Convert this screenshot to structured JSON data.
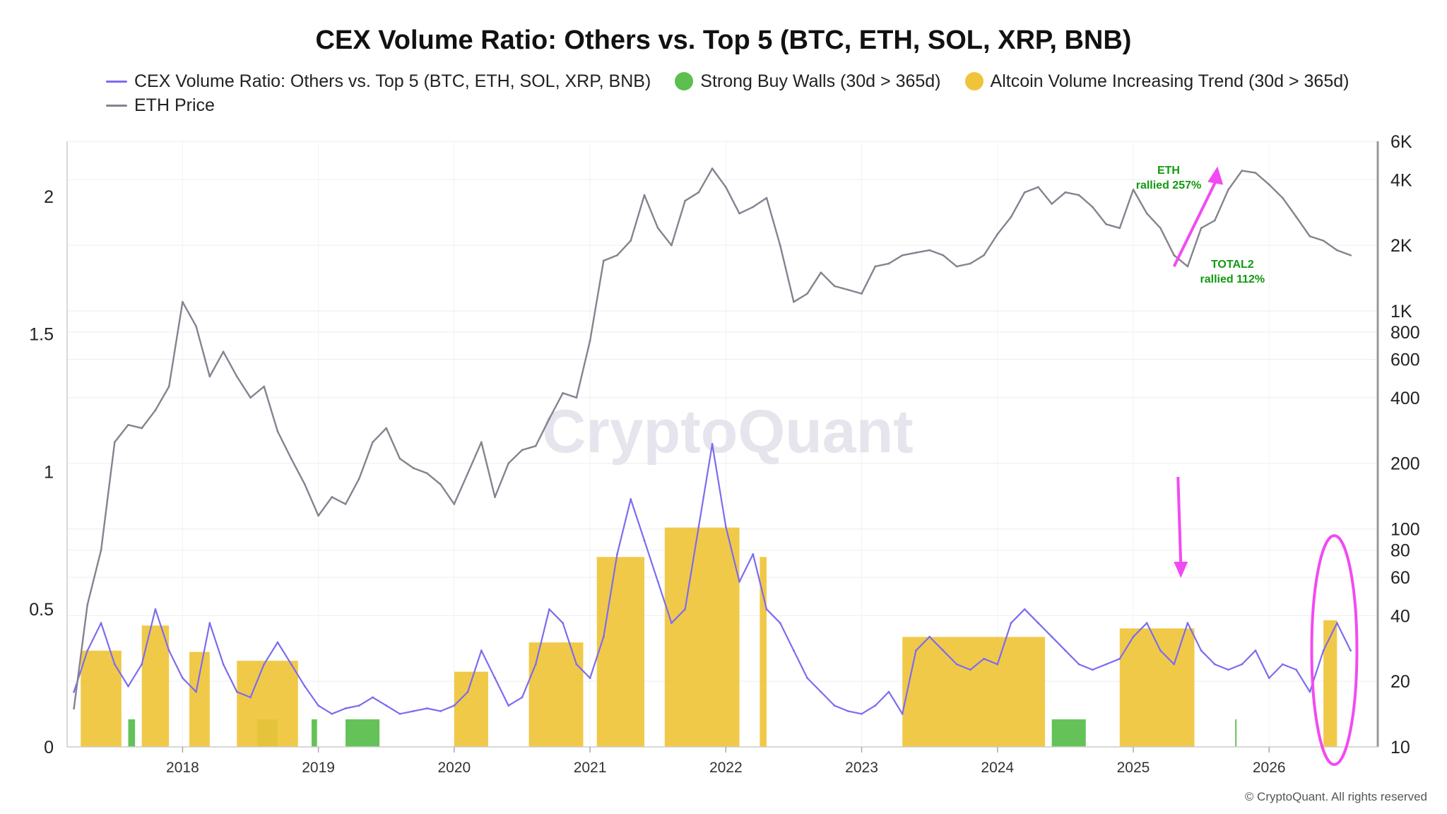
{
  "chart_data": {
    "type": "bar",
    "title": "CEX Volume Ratio: Others vs. Top 5 (BTC, ETH, SOL, XRP, BNB)",
    "legend": {
      "placement": "top",
      "items": [
        {
          "label": "CEX Volume Ratio: Others vs. Top 5 (BTC, ETH, SOL, XRP, BNB)",
          "kind": "line",
          "color": "#7b6cf0"
        },
        {
          "label": "Strong Buy Walls (30d > 365d)",
          "kind": "dot",
          "color": "#5cbf4f"
        },
        {
          "label": "Altcoin Volume Increasing Trend (30d > 365d)",
          "kind": "dot",
          "color": "#f0c43a"
        },
        {
          "label": "ETH Price",
          "kind": "line",
          "color": "#86828f"
        }
      ]
    },
    "watermark": "CryptoQuant",
    "footer": "© CryptoQuant. All rights reserved",
    "x_axis": {
      "tick_labels": [
        "2018",
        "2019",
        "2020",
        "2021",
        "2022",
        "2023",
        "2024",
        "2025",
        "2026"
      ],
      "range": [
        2017.15,
        2026.8
      ]
    },
    "y_left": {
      "tick_labels": [
        "0",
        "0.5",
        "1",
        "1.5",
        "2"
      ],
      "ticks": [
        0,
        0.5,
        1,
        1.5,
        2
      ],
      "range": [
        0,
        2.2
      ]
    },
    "y_right": {
      "scale": "log",
      "tick_labels": [
        "10",
        "20",
        "40",
        "60",
        "80",
        "100",
        "200",
        "400",
        "600",
        "800",
        "1K",
        "2K",
        "4K",
        "6K"
      ],
      "ticks": [
        10,
        20,
        40,
        60,
        80,
        100,
        200,
        400,
        600,
        800,
        1000,
        2000,
        4000,
        6000
      ],
      "range": [
        10,
        6000
      ]
    },
    "grid": true,
    "series": [
      {
        "name": "CEX Volume Ratio: Others vs. Top 5 (BTC, ETH, SOL, XRP, BNB)",
        "axis": "left",
        "color": "#7b6cf0",
        "x": [
          2017.2,
          2017.3,
          2017.4,
          2017.5,
          2017.6,
          2017.7,
          2017.8,
          2017.9,
          2018.0,
          2018.1,
          2018.2,
          2018.3,
          2018.4,
          2018.5,
          2018.6,
          2018.7,
          2018.8,
          2018.9,
          2019.0,
          2019.1,
          2019.2,
          2019.3,
          2019.4,
          2019.5,
          2019.6,
          2019.7,
          2019.8,
          2019.9,
          2020.0,
          2020.1,
          2020.2,
          2020.3,
          2020.4,
          2020.5,
          2020.6,
          2020.7,
          2020.8,
          2020.9,
          2021.0,
          2021.1,
          2021.2,
          2021.3,
          2021.4,
          2021.5,
          2021.6,
          2021.7,
          2021.8,
          2021.9,
          2022.0,
          2022.1,
          2022.2,
          2022.3,
          2022.4,
          2022.5,
          2022.6,
          2022.7,
          2022.8,
          2022.9,
          2023.0,
          2023.1,
          2023.2,
          2023.3,
          2023.4,
          2023.5,
          2023.6,
          2023.7,
          2023.8,
          2023.9,
          2024.0,
          2024.1,
          2024.2,
          2024.3,
          2024.4,
          2024.5,
          2024.6,
          2024.7,
          2024.8,
          2024.9,
          2025.0,
          2025.1,
          2025.2,
          2025.3,
          2025.4,
          2025.5,
          2025.6,
          2025.7,
          2025.8,
          2025.9,
          2026.0,
          2026.1,
          2026.2,
          2026.3,
          2026.4,
          2026.5,
          2026.6
        ],
        "y": [
          0.2,
          0.35,
          0.45,
          0.3,
          0.22,
          0.3,
          0.5,
          0.35,
          0.25,
          0.2,
          0.45,
          0.3,
          0.2,
          0.18,
          0.3,
          0.38,
          0.3,
          0.22,
          0.15,
          0.12,
          0.14,
          0.15,
          0.18,
          0.15,
          0.12,
          0.13,
          0.14,
          0.13,
          0.15,
          0.2,
          0.35,
          0.25,
          0.15,
          0.18,
          0.3,
          0.5,
          0.45,
          0.3,
          0.25,
          0.4,
          0.7,
          0.9,
          0.75,
          0.6,
          0.45,
          0.5,
          0.8,
          1.1,
          0.8,
          0.6,
          0.7,
          0.5,
          0.45,
          0.35,
          0.25,
          0.2,
          0.15,
          0.13,
          0.12,
          0.15,
          0.2,
          0.12,
          0.35,
          0.4,
          0.35,
          0.3,
          0.28,
          0.32,
          0.3,
          0.45,
          0.5,
          0.45,
          0.4,
          0.35,
          0.3,
          0.28,
          0.3,
          0.32,
          0.4,
          0.45,
          0.35,
          0.3,
          0.45,
          0.35,
          0.3,
          0.28,
          0.3,
          0.35,
          0.25,
          0.3,
          0.28,
          0.2,
          0.35,
          0.45,
          0.35
        ]
      },
      {
        "name": "ETH Price",
        "axis": "right",
        "color": "#86828f",
        "x": [
          2017.2,
          2017.3,
          2017.4,
          2017.5,
          2017.6,
          2017.7,
          2017.8,
          2017.9,
          2018.0,
          2018.1,
          2018.2,
          2018.3,
          2018.4,
          2018.5,
          2018.6,
          2018.7,
          2018.8,
          2018.9,
          2019.0,
          2019.1,
          2019.2,
          2019.3,
          2019.4,
          2019.5,
          2019.6,
          2019.7,
          2019.8,
          2019.9,
          2020.0,
          2020.1,
          2020.2,
          2020.3,
          2020.4,
          2020.5,
          2020.6,
          2020.7,
          2020.8,
          2020.9,
          2021.0,
          2021.1,
          2021.2,
          2021.3,
          2021.4,
          2021.5,
          2021.6,
          2021.7,
          2021.8,
          2021.9,
          2022.0,
          2022.1,
          2022.2,
          2022.3,
          2022.4,
          2022.5,
          2022.6,
          2022.7,
          2022.8,
          2022.9,
          2023.0,
          2023.1,
          2023.2,
          2023.3,
          2023.4,
          2023.5,
          2023.6,
          2023.7,
          2023.8,
          2023.9,
          2024.0,
          2024.1,
          2024.2,
          2024.3,
          2024.4,
          2024.5,
          2024.6,
          2024.7,
          2024.8,
          2024.9,
          2025.0,
          2025.1,
          2025.2,
          2025.3,
          2025.4,
          2025.5,
          2025.6,
          2025.7,
          2025.8,
          2025.9,
          2026.0,
          2026.1,
          2026.2,
          2026.3,
          2026.4,
          2026.5,
          2026.6
        ],
        "y": [
          15,
          45,
          80,
          250,
          300,
          290,
          350,
          450,
          1100,
          850,
          500,
          650,
          500,
          400,
          450,
          280,
          210,
          160,
          115,
          140,
          130,
          170,
          250,
          290,
          210,
          190,
          180,
          160,
          130,
          180,
          250,
          140,
          200,
          230,
          240,
          320,
          420,
          400,
          730,
          1700,
          1800,
          2100,
          3400,
          2400,
          2000,
          3200,
          3500,
          4500,
          3700,
          2800,
          3000,
          3300,
          2000,
          1100,
          1200,
          1500,
          1300,
          1250,
          1200,
          1600,
          1650,
          1800,
          1850,
          1900,
          1800,
          1600,
          1650,
          1800,
          2250,
          2700,
          3500,
          3700,
          3100,
          3500,
          3400,
          3000,
          2500,
          2400,
          3600,
          2800,
          2400,
          1800,
          1600,
          2400,
          2600,
          3600,
          4400,
          4300,
          3800,
          3300,
          2700,
          2200,
          2100,
          1900,
          1800
        ]
      }
    ],
    "bands": {
      "strong_buy_walls_ranges": [
        [
          2017.6,
          2017.65
        ],
        [
          2018.55,
          2018.7
        ],
        [
          2018.95,
          2018.99
        ],
        [
          2019.2,
          2019.45
        ],
        [
          2024.4,
          2024.65
        ],
        [
          2025.75,
          2025.76
        ]
      ],
      "altcoin_volume_increasing_ranges": [
        [
          2017.25,
          2017.55
        ],
        [
          2017.7,
          2017.9
        ],
        [
          2018.05,
          2018.2
        ],
        [
          2018.4,
          2018.85
        ],
        [
          2020.0,
          2020.25
        ],
        [
          2020.55,
          2020.95
        ],
        [
          2021.05,
          2021.4
        ],
        [
          2021.55,
          2022.1
        ],
        [
          2022.25,
          2022.3
        ],
        [
          2023.3,
          2024.35
        ],
        [
          2024.9,
          2025.45
        ],
        [
          2026.4,
          2026.5
        ]
      ]
    },
    "annotations": [
      {
        "text_lines": [
          "ETH",
          "rallied 257%"
        ],
        "color": "#119a11"
      },
      {
        "text_lines": [
          "TOTAL2",
          "rallied 112%"
        ],
        "color": "#119a11"
      }
    ]
  }
}
